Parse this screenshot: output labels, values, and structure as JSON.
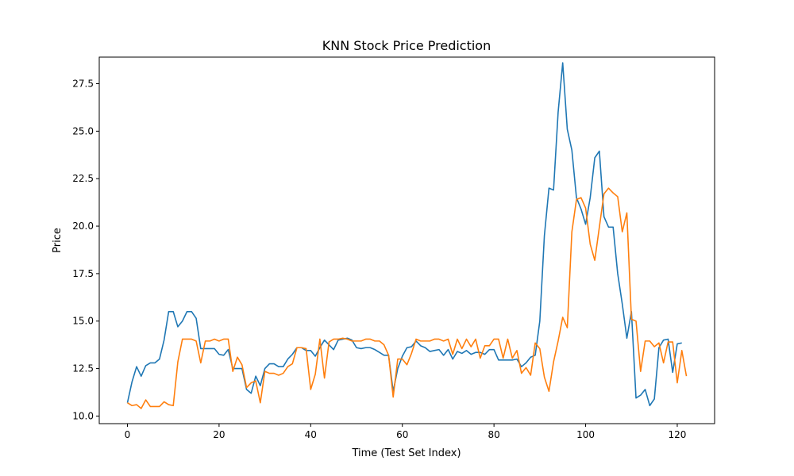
{
  "chart_data": {
    "type": "line",
    "title": "KNN Stock Price Prediction",
    "xlabel": "Time (Test Set Index)",
    "ylabel": "Price",
    "xlim": [
      -6.15,
      128.15
    ],
    "ylim": [
      9.6,
      28.9
    ],
    "xticks": [
      0,
      20,
      40,
      60,
      80,
      100,
      120
    ],
    "xtick_labels": [
      "0",
      "20",
      "40",
      "60",
      "80",
      "100",
      "120"
    ],
    "yticks": [
      10.0,
      12.5,
      15.0,
      17.5,
      20.0,
      22.5,
      25.0,
      27.5
    ],
    "ytick_labels": [
      "10.0",
      "12.5",
      "15.0",
      "17.5",
      "20.0",
      "22.5",
      "25.0",
      "27.5"
    ],
    "grid": false,
    "series": [
      {
        "color": "#1f77b4",
        "values": [
          10.7,
          11.8,
          12.6,
          12.1,
          12.65,
          12.8,
          12.8,
          13.0,
          14.0,
          15.5,
          15.5,
          14.7,
          15.0,
          15.5,
          15.5,
          15.15,
          13.55,
          13.55,
          13.55,
          13.55,
          13.25,
          13.2,
          13.5,
          12.5,
          12.5,
          12.5,
          11.4,
          11.2,
          12.1,
          11.6,
          12.5,
          12.75,
          12.75,
          12.6,
          12.6,
          13.0,
          13.25,
          13.6,
          13.6,
          13.45,
          13.45,
          13.15,
          13.6,
          14.0,
          13.75,
          13.5,
          14.0,
          14.05,
          14.1,
          14.0,
          13.6,
          13.55,
          13.6,
          13.6,
          13.5,
          13.35,
          13.2,
          13.2,
          11.3,
          12.5,
          13.15,
          13.6,
          13.65,
          13.95,
          13.7,
          13.6,
          13.4,
          13.45,
          13.5,
          13.2,
          13.5,
          13.0,
          13.4,
          13.3,
          13.45,
          13.25,
          13.35,
          13.35,
          13.25,
          13.5,
          13.5,
          12.95,
          12.95,
          12.95,
          12.95,
          13.0,
          12.6,
          12.8,
          13.1,
          13.2,
          15.0,
          19.5,
          22.0,
          21.9,
          26.0,
          28.6,
          25.1,
          24.0,
          21.5,
          20.9,
          20.1,
          21.5,
          23.6,
          23.95,
          20.5,
          19.95,
          19.95,
          17.5,
          15.9,
          14.1,
          15.5,
          10.95,
          11.1,
          11.4,
          10.55,
          10.9,
          13.6,
          14.0,
          14.05,
          12.3,
          13.8,
          13.85
        ]
      },
      {
        "color": "#ff7f0e",
        "values": [
          10.7,
          10.55,
          10.6,
          10.4,
          10.85,
          10.5,
          10.5,
          10.5,
          10.75,
          10.6,
          10.55,
          12.85,
          14.05,
          14.05,
          14.05,
          13.95,
          12.8,
          13.95,
          13.95,
          14.05,
          13.95,
          14.05,
          14.05,
          12.35,
          13.1,
          12.7,
          11.5,
          11.75,
          11.85,
          10.7,
          12.35,
          12.25,
          12.25,
          12.15,
          12.25,
          12.6,
          12.75,
          13.6,
          13.6,
          13.55,
          11.4,
          12.2,
          14.05,
          12.0,
          13.9,
          14.05,
          14.05,
          14.1,
          14.05,
          13.95,
          13.95,
          13.95,
          14.05,
          14.05,
          13.95,
          13.95,
          13.75,
          13.2,
          11.0,
          13.0,
          13.0,
          12.7,
          13.3,
          14.05,
          13.95,
          13.95,
          13.95,
          14.05,
          14.05,
          13.95,
          14.05,
          13.25,
          14.05,
          13.55,
          14.05,
          13.65,
          14.05,
          13.05,
          13.7,
          13.7,
          14.05,
          14.05,
          13.05,
          14.05,
          13.05,
          13.45,
          12.25,
          12.55,
          12.15,
          13.85,
          13.55,
          12.05,
          11.3,
          12.85,
          13.95,
          15.2,
          14.65,
          19.7,
          21.4,
          21.5,
          20.95,
          19.05,
          18.2,
          19.95,
          21.7,
          22.0,
          21.75,
          21.55,
          19.7,
          20.7,
          15.1,
          15.0,
          12.35,
          13.95,
          13.95,
          13.65,
          13.85,
          12.8,
          13.9,
          13.9,
          11.75,
          13.45,
          12.1
        ]
      }
    ]
  }
}
